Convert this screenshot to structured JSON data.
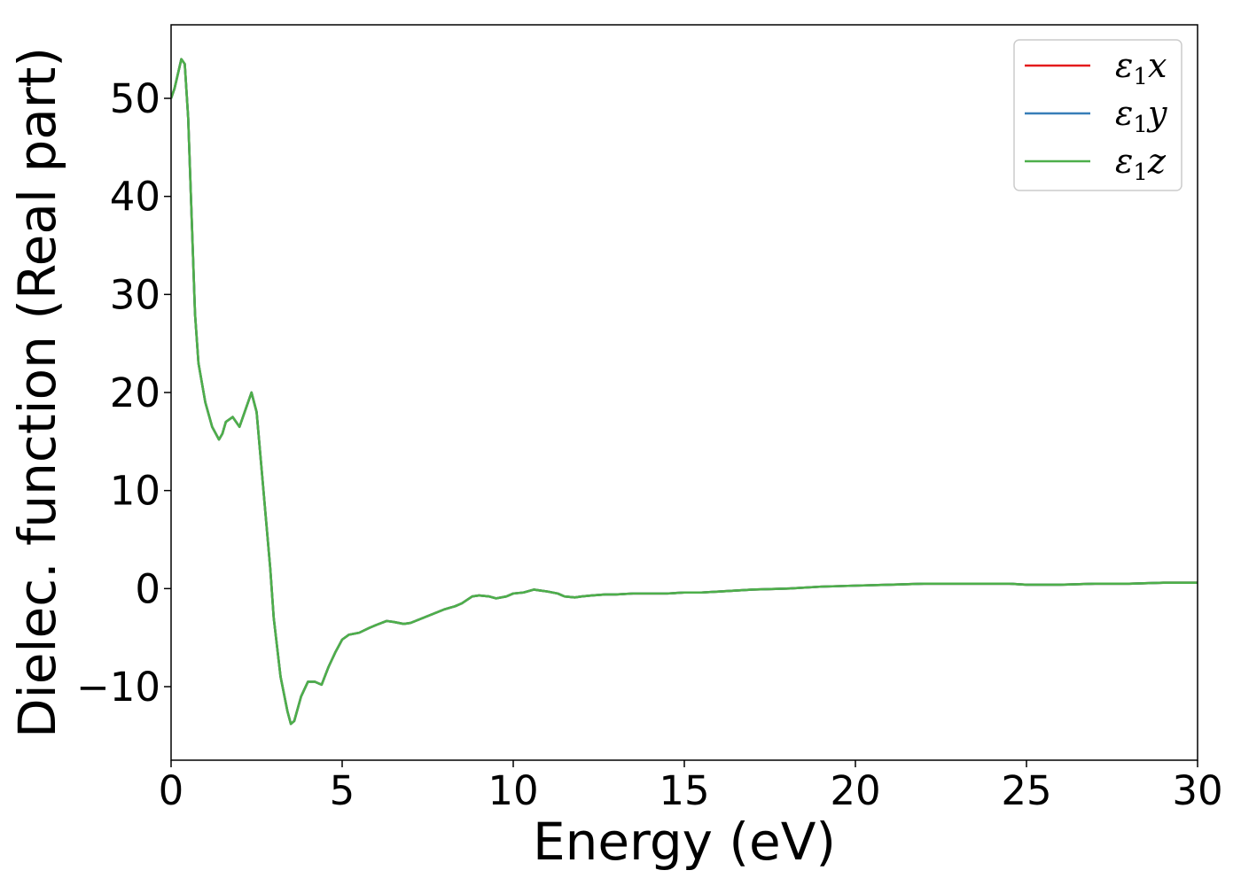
{
  "chart_data": {
    "type": "line",
    "title": "",
    "xlabel": "Energy (eV)",
    "ylabel": "Dielec. function (Real part)",
    "xlim": [
      0,
      30
    ],
    "ylim": [
      -17.5,
      57.5
    ],
    "xticks": [
      0,
      5,
      10,
      15,
      20,
      25,
      30
    ],
    "xtick_labels": [
      "0",
      "5",
      "10",
      "15",
      "20",
      "25",
      "30"
    ],
    "yticks": [
      -10,
      0,
      10,
      20,
      30,
      40,
      50
    ],
    "ytick_labels": [
      "−10",
      "0",
      "10",
      "20",
      "30",
      "40",
      "50"
    ],
    "grid": false,
    "legend_position": "top-right",
    "x": [
      0,
      0.1,
      0.2,
      0.3,
      0.4,
      0.5,
      0.6,
      0.7,
      0.8,
      1.0,
      1.2,
      1.4,
      1.5,
      1.6,
      1.8,
      2.0,
      2.2,
      2.35,
      2.5,
      2.7,
      2.9,
      3.0,
      3.2,
      3.4,
      3.5,
      3.6,
      3.8,
      4.0,
      4.2,
      4.4,
      4.6,
      4.8,
      5.0,
      5.2,
      5.5,
      5.8,
      6.0,
      6.3,
      6.5,
      6.8,
      7.0,
      7.5,
      8.0,
      8.3,
      8.5,
      8.8,
      9.0,
      9.3,
      9.5,
      9.8,
      10.0,
      10.3,
      10.6,
      10.8,
      11.0,
      11.3,
      11.5,
      11.8,
      12.0,
      12.3,
      12.7,
      13.0,
      13.5,
      14.0,
      14.5,
      15.0,
      15.5,
      16.0,
      17.0,
      18.0,
      19.0,
      20.0,
      21.0,
      22.0,
      23.0,
      24.0,
      24.5,
      25.0,
      25.5,
      26.0,
      27.0,
      28.0,
      29.0,
      30.0
    ],
    "series": [
      {
        "name": "x",
        "color": "#e41a1c",
        "values": [
          50.0,
          51.0,
          52.5,
          54.0,
          53.5,
          48.0,
          38.0,
          28.0,
          23.0,
          19.0,
          16.5,
          15.2,
          15.8,
          17.0,
          17.5,
          16.5,
          18.5,
          20.0,
          18.0,
          10.0,
          2.0,
          -3.0,
          -9.0,
          -12.5,
          -13.8,
          -13.5,
          -11.0,
          -9.5,
          -9.5,
          -9.8,
          -8.0,
          -6.5,
          -5.2,
          -4.7,
          -4.5,
          -4.0,
          -3.7,
          -3.3,
          -3.4,
          -3.6,
          -3.5,
          -2.8,
          -2.1,
          -1.8,
          -1.5,
          -0.8,
          -0.7,
          -0.8,
          -1.0,
          -0.8,
          -0.5,
          -0.4,
          -0.1,
          -0.2,
          -0.3,
          -0.5,
          -0.8,
          -0.9,
          -0.8,
          -0.7,
          -0.6,
          -0.6,
          -0.5,
          -0.5,
          -0.5,
          -0.4,
          -0.4,
          -0.3,
          -0.1,
          0.0,
          0.2,
          0.3,
          0.4,
          0.5,
          0.5,
          0.5,
          0.5,
          0.4,
          0.4,
          0.4,
          0.5,
          0.5,
          0.6,
          0.6
        ]
      },
      {
        "name": "y",
        "color": "#377eb8",
        "values": [
          50.0,
          51.0,
          52.5,
          54.0,
          53.5,
          48.0,
          38.0,
          28.0,
          23.0,
          19.0,
          16.5,
          15.2,
          15.8,
          17.0,
          17.5,
          16.5,
          18.5,
          20.0,
          18.0,
          10.0,
          2.0,
          -3.0,
          -9.0,
          -12.5,
          -13.8,
          -13.5,
          -11.0,
          -9.5,
          -9.5,
          -9.8,
          -8.0,
          -6.5,
          -5.2,
          -4.7,
          -4.5,
          -4.0,
          -3.7,
          -3.3,
          -3.4,
          -3.6,
          -3.5,
          -2.8,
          -2.1,
          -1.8,
          -1.5,
          -0.8,
          -0.7,
          -0.8,
          -1.0,
          -0.8,
          -0.5,
          -0.4,
          -0.1,
          -0.2,
          -0.3,
          -0.5,
          -0.8,
          -0.9,
          -0.8,
          -0.7,
          -0.6,
          -0.6,
          -0.5,
          -0.5,
          -0.5,
          -0.4,
          -0.4,
          -0.3,
          -0.1,
          0.0,
          0.2,
          0.3,
          0.4,
          0.5,
          0.5,
          0.5,
          0.5,
          0.4,
          0.4,
          0.4,
          0.5,
          0.5,
          0.6,
          0.6
        ]
      },
      {
        "name": "z",
        "color": "#4daf4a",
        "values": [
          50.0,
          51.0,
          52.5,
          54.0,
          53.5,
          48.0,
          38.0,
          28.0,
          23.0,
          19.0,
          16.5,
          15.2,
          15.8,
          17.0,
          17.5,
          16.5,
          18.5,
          20.0,
          18.0,
          10.0,
          2.0,
          -3.0,
          -9.0,
          -12.5,
          -13.8,
          -13.5,
          -11.0,
          -9.5,
          -9.5,
          -9.8,
          -8.0,
          -6.5,
          -5.2,
          -4.7,
          -4.5,
          -4.0,
          -3.7,
          -3.3,
          -3.4,
          -3.6,
          -3.5,
          -2.8,
          -2.1,
          -1.8,
          -1.5,
          -0.8,
          -0.7,
          -0.8,
          -1.0,
          -0.8,
          -0.5,
          -0.4,
          -0.1,
          -0.2,
          -0.3,
          -0.5,
          -0.8,
          -0.9,
          -0.8,
          -0.7,
          -0.6,
          -0.6,
          -0.5,
          -0.5,
          -0.5,
          -0.4,
          -0.4,
          -0.3,
          -0.1,
          0.0,
          0.2,
          0.3,
          0.4,
          0.5,
          0.5,
          0.5,
          0.5,
          0.4,
          0.4,
          0.4,
          0.5,
          0.5,
          0.6,
          0.6
        ]
      }
    ],
    "legend": [
      {
        "symbol": "ε",
        "sub": "1",
        "var": "x"
      },
      {
        "symbol": "ε",
        "sub": "1",
        "var": "y"
      },
      {
        "symbol": "ε",
        "sub": "1",
        "var": "z"
      }
    ]
  }
}
